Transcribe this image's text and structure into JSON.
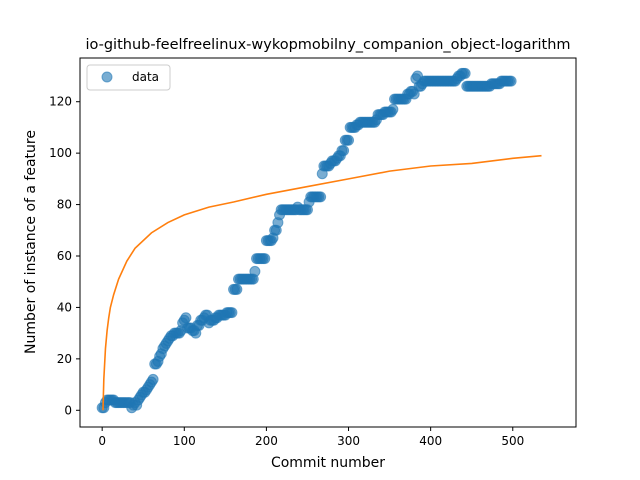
{
  "chart_data": {
    "type": "scatter",
    "title": "io-github-feelfreelinux-wykopmobilny_companion_object-logarithm",
    "xlabel": "Commit number",
    "ylabel": "Number of instance of a feature",
    "xlim": [
      -27,
      577
    ],
    "ylim": [
      -6.5,
      137
    ],
    "xticks": [
      0,
      100,
      200,
      300,
      400,
      500
    ],
    "yticks": [
      0,
      20,
      40,
      60,
      80,
      100,
      120
    ],
    "grid": false,
    "legend": {
      "position": "top-left",
      "entries": [
        "data"
      ]
    },
    "series": [
      {
        "name": "data",
        "kind": "points",
        "color": "#1f77b4",
        "points": [
          [
            0,
            1
          ],
          [
            2,
            1
          ],
          [
            4,
            3
          ],
          [
            6,
            4
          ],
          [
            8,
            4
          ],
          [
            10,
            4
          ],
          [
            12,
            4
          ],
          [
            14,
            4
          ],
          [
            16,
            3
          ],
          [
            18,
            3
          ],
          [
            20,
            3
          ],
          [
            22,
            3
          ],
          [
            24,
            3
          ],
          [
            26,
            3
          ],
          [
            28,
            3
          ],
          [
            30,
            3
          ],
          [
            32,
            3
          ],
          [
            34,
            3
          ],
          [
            36,
            1
          ],
          [
            38,
            2
          ],
          [
            40,
            3
          ],
          [
            42,
            2
          ],
          [
            44,
            4
          ],
          [
            46,
            5
          ],
          [
            48,
            6
          ],
          [
            50,
            7
          ],
          [
            52,
            7
          ],
          [
            54,
            8
          ],
          [
            56,
            9
          ],
          [
            58,
            10
          ],
          [
            60,
            11
          ],
          [
            62,
            12
          ],
          [
            64,
            18
          ],
          [
            66,
            18
          ],
          [
            68,
            19
          ],
          [
            70,
            21
          ],
          [
            72,
            22
          ],
          [
            74,
            24
          ],
          [
            76,
            25
          ],
          [
            78,
            26
          ],
          [
            80,
            27
          ],
          [
            82,
            28
          ],
          [
            84,
            29
          ],
          [
            86,
            29
          ],
          [
            88,
            30
          ],
          [
            90,
            30
          ],
          [
            92,
            30
          ],
          [
            94,
            30
          ],
          [
            96,
            31
          ],
          [
            98,
            34
          ],
          [
            100,
            35
          ],
          [
            102,
            36
          ],
          [
            104,
            32
          ],
          [
            106,
            32
          ],
          [
            108,
            32
          ],
          [
            110,
            31
          ],
          [
            112,
            31
          ],
          [
            114,
            30
          ],
          [
            116,
            33
          ],
          [
            118,
            33
          ],
          [
            120,
            35
          ],
          [
            122,
            35
          ],
          [
            124,
            36
          ],
          [
            126,
            37
          ],
          [
            128,
            37
          ],
          [
            130,
            34
          ],
          [
            132,
            35
          ],
          [
            134,
            35
          ],
          [
            136,
            35
          ],
          [
            138,
            36
          ],
          [
            140,
            36
          ],
          [
            142,
            37
          ],
          [
            144,
            37
          ],
          [
            146,
            37
          ],
          [
            148,
            37
          ],
          [
            150,
            37
          ],
          [
            152,
            38
          ],
          [
            154,
            38
          ],
          [
            156,
            38
          ],
          [
            158,
            38
          ],
          [
            160,
            47
          ],
          [
            162,
            47
          ],
          [
            164,
            47
          ],
          [
            166,
            51
          ],
          [
            168,
            51
          ],
          [
            170,
            51
          ],
          [
            172,
            51
          ],
          [
            174,
            51
          ],
          [
            176,
            51
          ],
          [
            178,
            51
          ],
          [
            180,
            51
          ],
          [
            182,
            51
          ],
          [
            184,
            51
          ],
          [
            186,
            54
          ],
          [
            188,
            59
          ],
          [
            190,
            59
          ],
          [
            192,
            59
          ],
          [
            194,
            59
          ],
          [
            196,
            59
          ],
          [
            198,
            59
          ],
          [
            200,
            66
          ],
          [
            202,
            66
          ],
          [
            204,
            66
          ],
          [
            206,
            66
          ],
          [
            208,
            67
          ],
          [
            210,
            70
          ],
          [
            212,
            70
          ],
          [
            214,
            73
          ],
          [
            216,
            76
          ],
          [
            218,
            78
          ],
          [
            220,
            78
          ],
          [
            222,
            78
          ],
          [
            224,
            78
          ],
          [
            226,
            78
          ],
          [
            228,
            78
          ],
          [
            230,
            78
          ],
          [
            232,
            78
          ],
          [
            234,
            78
          ],
          [
            236,
            78
          ],
          [
            238,
            79
          ],
          [
            240,
            78
          ],
          [
            242,
            78
          ],
          [
            244,
            78
          ],
          [
            246,
            78
          ],
          [
            248,
            78
          ],
          [
            250,
            78
          ],
          [
            252,
            81
          ],
          [
            254,
            83
          ],
          [
            256,
            83
          ],
          [
            258,
            83
          ],
          [
            260,
            83
          ],
          [
            262,
            83
          ],
          [
            264,
            83
          ],
          [
            266,
            83
          ],
          [
            268,
            92
          ],
          [
            270,
            95
          ],
          [
            272,
            95
          ],
          [
            274,
            95
          ],
          [
            276,
            95
          ],
          [
            278,
            96
          ],
          [
            280,
            97
          ],
          [
            282,
            97
          ],
          [
            284,
            97
          ],
          [
            286,
            98
          ],
          [
            288,
            99
          ],
          [
            290,
            99
          ],
          [
            292,
            101
          ],
          [
            294,
            101
          ],
          [
            296,
            105
          ],
          [
            298,
            105
          ],
          [
            300,
            105
          ],
          [
            302,
            110
          ],
          [
            304,
            110
          ],
          [
            306,
            110
          ],
          [
            308,
            110
          ],
          [
            310,
            111
          ],
          [
            312,
            111
          ],
          [
            314,
            112
          ],
          [
            316,
            112
          ],
          [
            318,
            112
          ],
          [
            320,
            112
          ],
          [
            322,
            112
          ],
          [
            324,
            112
          ],
          [
            326,
            112
          ],
          [
            328,
            112
          ],
          [
            330,
            112
          ],
          [
            332,
            112
          ],
          [
            334,
            113
          ],
          [
            336,
            115
          ],
          [
            338,
            115
          ],
          [
            340,
            115
          ],
          [
            342,
            115
          ],
          [
            344,
            116
          ],
          [
            346,
            116
          ],
          [
            348,
            116
          ],
          [
            350,
            116
          ],
          [
            352,
            116
          ],
          [
            354,
            117
          ],
          [
            356,
            121
          ],
          [
            358,
            121
          ],
          [
            360,
            121
          ],
          [
            362,
            121
          ],
          [
            364,
            121
          ],
          [
            366,
            121
          ],
          [
            368,
            121
          ],
          [
            370,
            121
          ],
          [
            372,
            123
          ],
          [
            374,
            123
          ],
          [
            376,
            124
          ],
          [
            378,
            124
          ],
          [
            380,
            123
          ],
          [
            382,
            129
          ],
          [
            384,
            130
          ],
          [
            386,
            126
          ],
          [
            388,
            126
          ],
          [
            390,
            127
          ],
          [
            392,
            128
          ],
          [
            394,
            128
          ],
          [
            396,
            128
          ],
          [
            398,
            128
          ],
          [
            400,
            128
          ],
          [
            402,
            128
          ],
          [
            404,
            128
          ],
          [
            406,
            128
          ],
          [
            408,
            128
          ],
          [
            410,
            128
          ],
          [
            412,
            128
          ],
          [
            414,
            128
          ],
          [
            416,
            128
          ],
          [
            418,
            128
          ],
          [
            420,
            128
          ],
          [
            422,
            128
          ],
          [
            424,
            128
          ],
          [
            426,
            128
          ],
          [
            428,
            128
          ],
          [
            430,
            128
          ],
          [
            432,
            129
          ],
          [
            434,
            130
          ],
          [
            436,
            130
          ],
          [
            438,
            131
          ],
          [
            440,
            131
          ],
          [
            442,
            131
          ],
          [
            444,
            126
          ],
          [
            446,
            126
          ],
          [
            448,
            126
          ],
          [
            450,
            126
          ],
          [
            452,
            126
          ],
          [
            454,
            126
          ],
          [
            456,
            126
          ],
          [
            458,
            126
          ],
          [
            460,
            126
          ],
          [
            462,
            126
          ],
          [
            464,
            126
          ],
          [
            466,
            126
          ],
          [
            468,
            126
          ],
          [
            470,
            126
          ],
          [
            472,
            126
          ],
          [
            474,
            127
          ],
          [
            476,
            127
          ],
          [
            478,
            127
          ],
          [
            480,
            127
          ],
          [
            482,
            127
          ],
          [
            484,
            127
          ],
          [
            486,
            128
          ],
          [
            488,
            128
          ],
          [
            490,
            128
          ],
          [
            492,
            128
          ],
          [
            494,
            128
          ],
          [
            496,
            128
          ],
          [
            498,
            128
          ]
        ]
      },
      {
        "kind": "curve",
        "color": "#ff7f0e",
        "points": [
          [
            1,
            0
          ],
          [
            2,
            12
          ],
          [
            4,
            24
          ],
          [
            6,
            31
          ],
          [
            8,
            36
          ],
          [
            10,
            40
          ],
          [
            14,
            45
          ],
          [
            20,
            51
          ],
          [
            30,
            58
          ],
          [
            40,
            63
          ],
          [
            60,
            69
          ],
          [
            80,
            73
          ],
          [
            100,
            76
          ],
          [
            130,
            79
          ],
          [
            160,
            81
          ],
          [
            200,
            84
          ],
          [
            250,
            87
          ],
          [
            300,
            90
          ],
          [
            350,
            93
          ],
          [
            400,
            95
          ],
          [
            450,
            96
          ],
          [
            500,
            98
          ],
          [
            535,
            99
          ]
        ]
      }
    ]
  }
}
